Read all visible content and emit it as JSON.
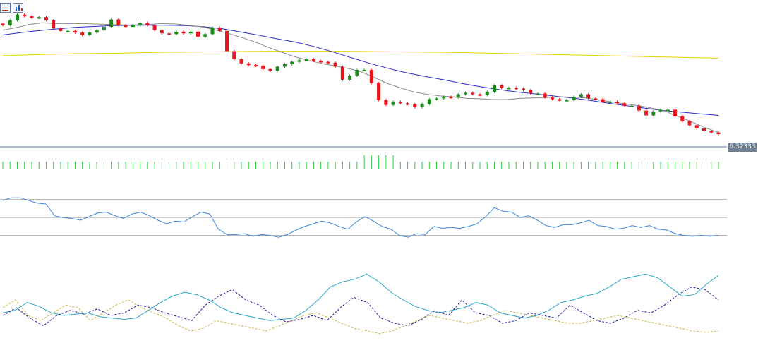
{
  "toolbar": {
    "icons": [
      "table-view-icon",
      "chart-view-icon"
    ]
  },
  "colors": {
    "bull": "#1a8c1a",
    "bear": "#e8141b",
    "ma_fast": "#8a8a8a",
    "ma_mid": "#2b2bc7",
    "ma_slow": "#e6d200",
    "volume": "#2ecc40",
    "oscillator": "#3a86d9",
    "adx": "#2aa6c8",
    "di_plus": "#c9b24a",
    "di_minus": "#1a1a9c",
    "level": "#aaaaaa"
  },
  "chart_data": [
    {
      "type": "candlestick",
      "current_price_label": "6.32333",
      "ylim": [
        6.3,
        6.63
      ],
      "close": [
        6.594,
        6.606,
        6.62,
        6.616,
        6.612,
        6.614,
        6.606,
        6.586,
        6.58,
        6.58,
        6.576,
        6.57,
        6.576,
        6.582,
        6.59,
        6.608,
        6.594,
        6.59,
        6.594,
        6.6,
        6.594,
        6.582,
        6.574,
        6.572,
        6.578,
        6.574,
        6.578,
        6.566,
        6.572,
        6.588,
        6.58,
        6.53,
        6.51,
        6.5,
        6.496,
        6.494,
        6.486,
        6.482,
        6.492,
        6.498,
        6.504,
        6.508,
        6.51,
        6.506,
        6.504,
        6.502,
        6.492,
        6.46,
        6.47,
        6.484,
        6.484,
        6.452,
        6.41,
        6.398,
        6.406,
        6.402,
        6.4,
        6.392,
        6.4,
        6.412,
        6.414,
        6.418,
        6.416,
        6.424,
        6.428,
        6.424,
        6.422,
        6.43,
        6.446,
        6.44,
        6.44,
        6.438,
        6.434,
        6.426,
        6.426,
        6.416,
        6.412,
        6.41,
        6.41,
        6.418,
        6.424,
        6.414,
        6.412,
        6.406,
        6.406,
        6.402,
        6.396,
        6.396,
        6.384,
        6.372,
        6.382,
        6.386,
        6.386,
        6.37,
        6.358,
        6.348,
        6.34,
        6.334,
        6.33,
        6.326
      ],
      "ma_fast": [
        6.582,
        6.588,
        6.596,
        6.6,
        6.598,
        6.598,
        6.598,
        6.597,
        6.596,
        6.595,
        6.595,
        6.596,
        6.598,
        6.597,
        6.594,
        6.59,
        6.583,
        6.574,
        6.564,
        6.553,
        6.54,
        6.528,
        6.517,
        6.508,
        6.5,
        6.494,
        6.488,
        6.48,
        6.466,
        6.451,
        6.44,
        6.43,
        6.424,
        6.42,
        6.418,
        6.414,
        6.413,
        6.411,
        6.411,
        6.414,
        6.415,
        6.416,
        6.418,
        6.417,
        6.415,
        6.41,
        6.405,
        6.4,
        6.396,
        6.39,
        6.382,
        6.369,
        6.356,
        6.342,
        6.33
      ],
      "ma_mid": [
        6.57,
        6.576,
        6.581,
        6.585,
        6.589,
        6.591,
        6.593,
        6.594,
        6.594,
        6.594,
        6.593,
        6.59,
        6.585,
        6.577,
        6.569,
        6.56,
        6.552,
        6.541,
        6.528,
        6.514,
        6.5,
        6.488,
        6.477,
        6.468,
        6.46,
        6.451,
        6.443,
        6.436,
        6.43,
        6.425,
        6.42,
        6.415,
        6.409,
        6.402,
        6.396,
        6.39,
        6.384,
        6.38,
        6.376,
        6.372
      ],
      "ma_slow": [
        6.519,
        6.522,
        6.524,
        6.525,
        6.527,
        6.528,
        6.529,
        6.53,
        6.53,
        6.53,
        6.529,
        6.528,
        6.527,
        6.525,
        6.523,
        6.521,
        6.519,
        6.517,
        6.515,
        6.513
      ],
      "volume_label": ""
    },
    {
      "type": "line",
      "name": "",
      "levels": [
        70,
        50,
        30
      ],
      "ylim": [
        25,
        80
      ],
      "values": [
        69,
        72,
        72,
        69,
        66,
        65,
        52,
        50,
        49,
        47,
        51,
        55,
        56,
        52,
        49,
        54,
        56,
        52,
        47,
        43,
        46,
        45,
        51,
        56,
        54,
        37,
        31,
        31,
        32,
        29,
        31,
        30,
        28,
        31,
        36,
        40,
        43,
        46,
        44,
        40,
        37,
        45,
        51,
        46,
        40,
        37,
        30,
        28,
        32,
        31,
        40,
        38,
        39,
        38,
        40,
        43,
        51,
        61,
        57,
        56,
        50,
        52,
        47,
        41,
        39,
        42,
        42,
        44,
        47,
        41,
        40,
        37,
        38,
        41,
        39,
        41,
        37,
        36,
        32,
        30,
        29,
        30,
        29,
        30
      ],
      "xlabel": "",
      "ylabel": ""
    },
    {
      "type": "line",
      "name": "",
      "ylim": [
        0,
        60
      ],
      "series": [
        {
          "name": "",
          "values": [
            20,
            22,
            28,
            25,
            20,
            18,
            19,
            20,
            17,
            16,
            15,
            16,
            22,
            28,
            33,
            36,
            34,
            30,
            24,
            20,
            18,
            16,
            14,
            15,
            16,
            22,
            30,
            40,
            44,
            46,
            50,
            44,
            36,
            30,
            25,
            22,
            20,
            22,
            24,
            28,
            26,
            20,
            18,
            16,
            18,
            22,
            28,
            30,
            33,
            35,
            40,
            46,
            48,
            50,
            47,
            40,
            33,
            34,
            42,
            49
          ]
        },
        {
          "name": "",
          "values": [
            18,
            24,
            16,
            10,
            18,
            22,
            19,
            23,
            18,
            20,
            26,
            24,
            20,
            17,
            14,
            26,
            33,
            38,
            30,
            26,
            18,
            13,
            15,
            18,
            14,
            24,
            32,
            28,
            16,
            12,
            10,
            15,
            22,
            18,
            30,
            20,
            18,
            12,
            14,
            20,
            18,
            16,
            26,
            20,
            14,
            12,
            16,
            22,
            20,
            26,
            34,
            40,
            38,
            30
          ]
        },
        {
          "name": "",
          "values": [
            24,
            30,
            18,
            14,
            20,
            26,
            24,
            14,
            20,
            26,
            30,
            24,
            20,
            16,
            10,
            6,
            8,
            14,
            12,
            10,
            8,
            6,
            10,
            14,
            18,
            20,
            16,
            12,
            8,
            6,
            4,
            6,
            10,
            14,
            18,
            16,
            14,
            12,
            14,
            18,
            22,
            20,
            18,
            16,
            14,
            12,
            12,
            14,
            16,
            18,
            16,
            14,
            12,
            10,
            8,
            6,
            5,
            6
          ]
        }
      ],
      "xlabel": "",
      "ylabel": ""
    }
  ]
}
